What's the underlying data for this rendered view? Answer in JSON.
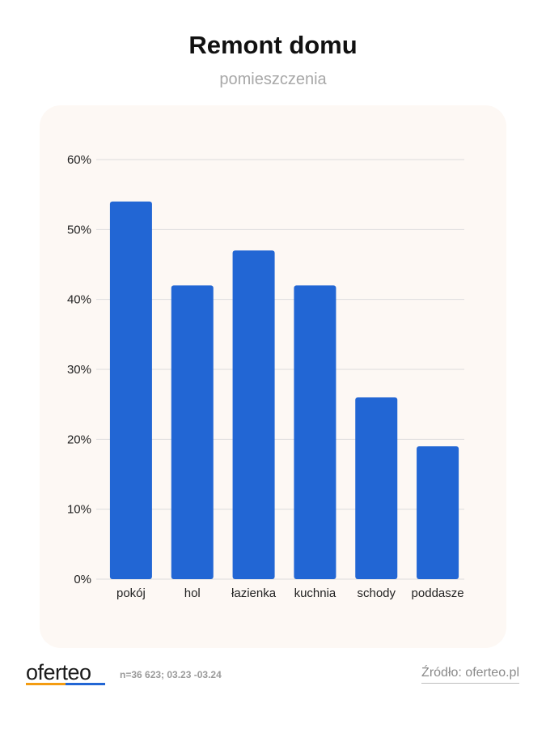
{
  "header": {
    "title": "Remont domu",
    "subtitle": "pomieszczenia"
  },
  "chart_data": {
    "type": "bar",
    "title": "Remont domu",
    "subtitle": "pomieszczenia",
    "categories": [
      "pokój",
      "hol",
      "łazienka",
      "kuchnia",
      "schody",
      "poddasze"
    ],
    "values": [
      54,
      42,
      47,
      42,
      26,
      19
    ],
    "y_ticks": [
      "0%",
      "10%",
      "20%",
      "30%",
      "40%",
      "50%",
      "60%"
    ],
    "ylim": [
      0,
      60
    ],
    "xlabel": "",
    "ylabel": "",
    "grid": true,
    "bar_color": "#2266d4",
    "gridline_color": "#dddddd",
    "panel_color": "#fdf8f4"
  },
  "footer": {
    "logo_text": "oferteo",
    "logo_colors": [
      "#f39c12",
      "#2266d4"
    ],
    "sample_note": "n=36 623; 03.23 -03.24",
    "source": "Źródło: oferteo.pl"
  }
}
